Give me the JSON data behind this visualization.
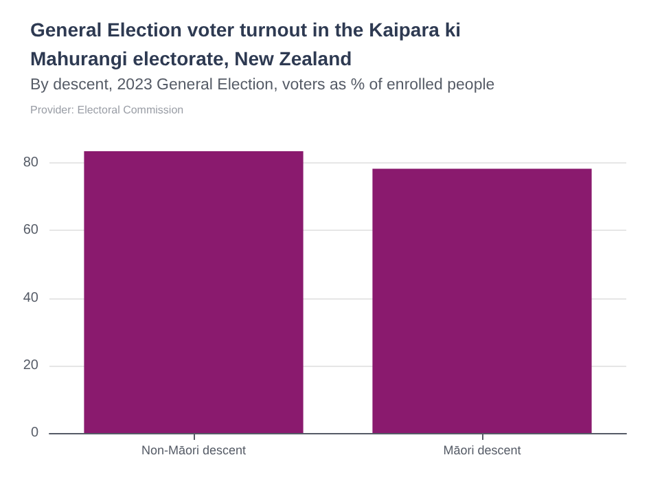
{
  "chart_data": {
    "type": "bar",
    "title": "General Election voter turnout in the Kaipara ki Mahurangi electorate, New Zealand",
    "subtitle": "By descent, 2023 General Election, voters as % of enrolled people",
    "annotations": [
      "Provider: Electoral Commission"
    ],
    "categories": [
      "Non-Māori descent",
      "Māori descent"
    ],
    "values": [
      83.5,
      78.3
    ],
    "color": "#8a1a6e",
    "ylim": [
      0,
      83.5
    ],
    "yticks": [
      0,
      20,
      40,
      60,
      80
    ],
    "grid": "y"
  }
}
